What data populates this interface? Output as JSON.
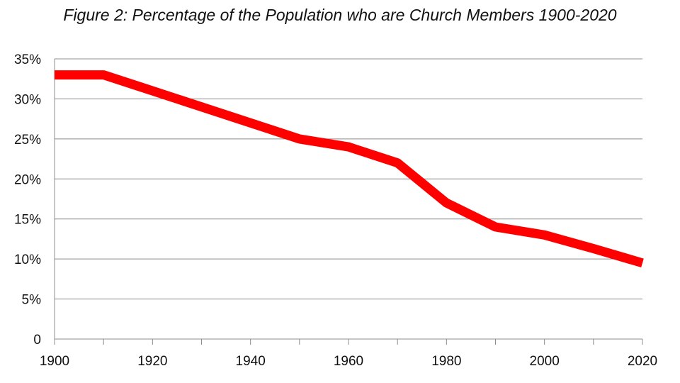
{
  "chart_data": {
    "type": "line",
    "title": "Figure 2: Percentage of the Population who are Church Members 1900-2020",
    "xlabel": "",
    "ylabel": "",
    "xlim": [
      1900,
      2020
    ],
    "ylim": [
      0,
      35
    ],
    "x_ticks": [
      "1900",
      "1920",
      "1940",
      "1960",
      "1980",
      "2000",
      "2020"
    ],
    "x_tick_values": [
      1900,
      1920,
      1940,
      1960,
      1980,
      2000,
      2020
    ],
    "y_ticks": [
      "0",
      "5%",
      "10%",
      "15%",
      "20%",
      "25%",
      "30%",
      "35%"
    ],
    "y_tick_values": [
      0,
      5,
      10,
      15,
      20,
      25,
      30,
      35
    ],
    "grid": "horizontal",
    "line_color": "#ff0000",
    "series": [
      {
        "x": [
          1900,
          1910,
          1920,
          1930,
          1940,
          1950,
          1960,
          1970,
          1980,
          1990,
          2000,
          2010,
          2020
        ],
        "values": [
          33,
          33,
          31,
          29,
          27,
          25,
          24,
          22,
          17,
          14,
          13,
          11.3,
          9.5
        ]
      }
    ]
  }
}
